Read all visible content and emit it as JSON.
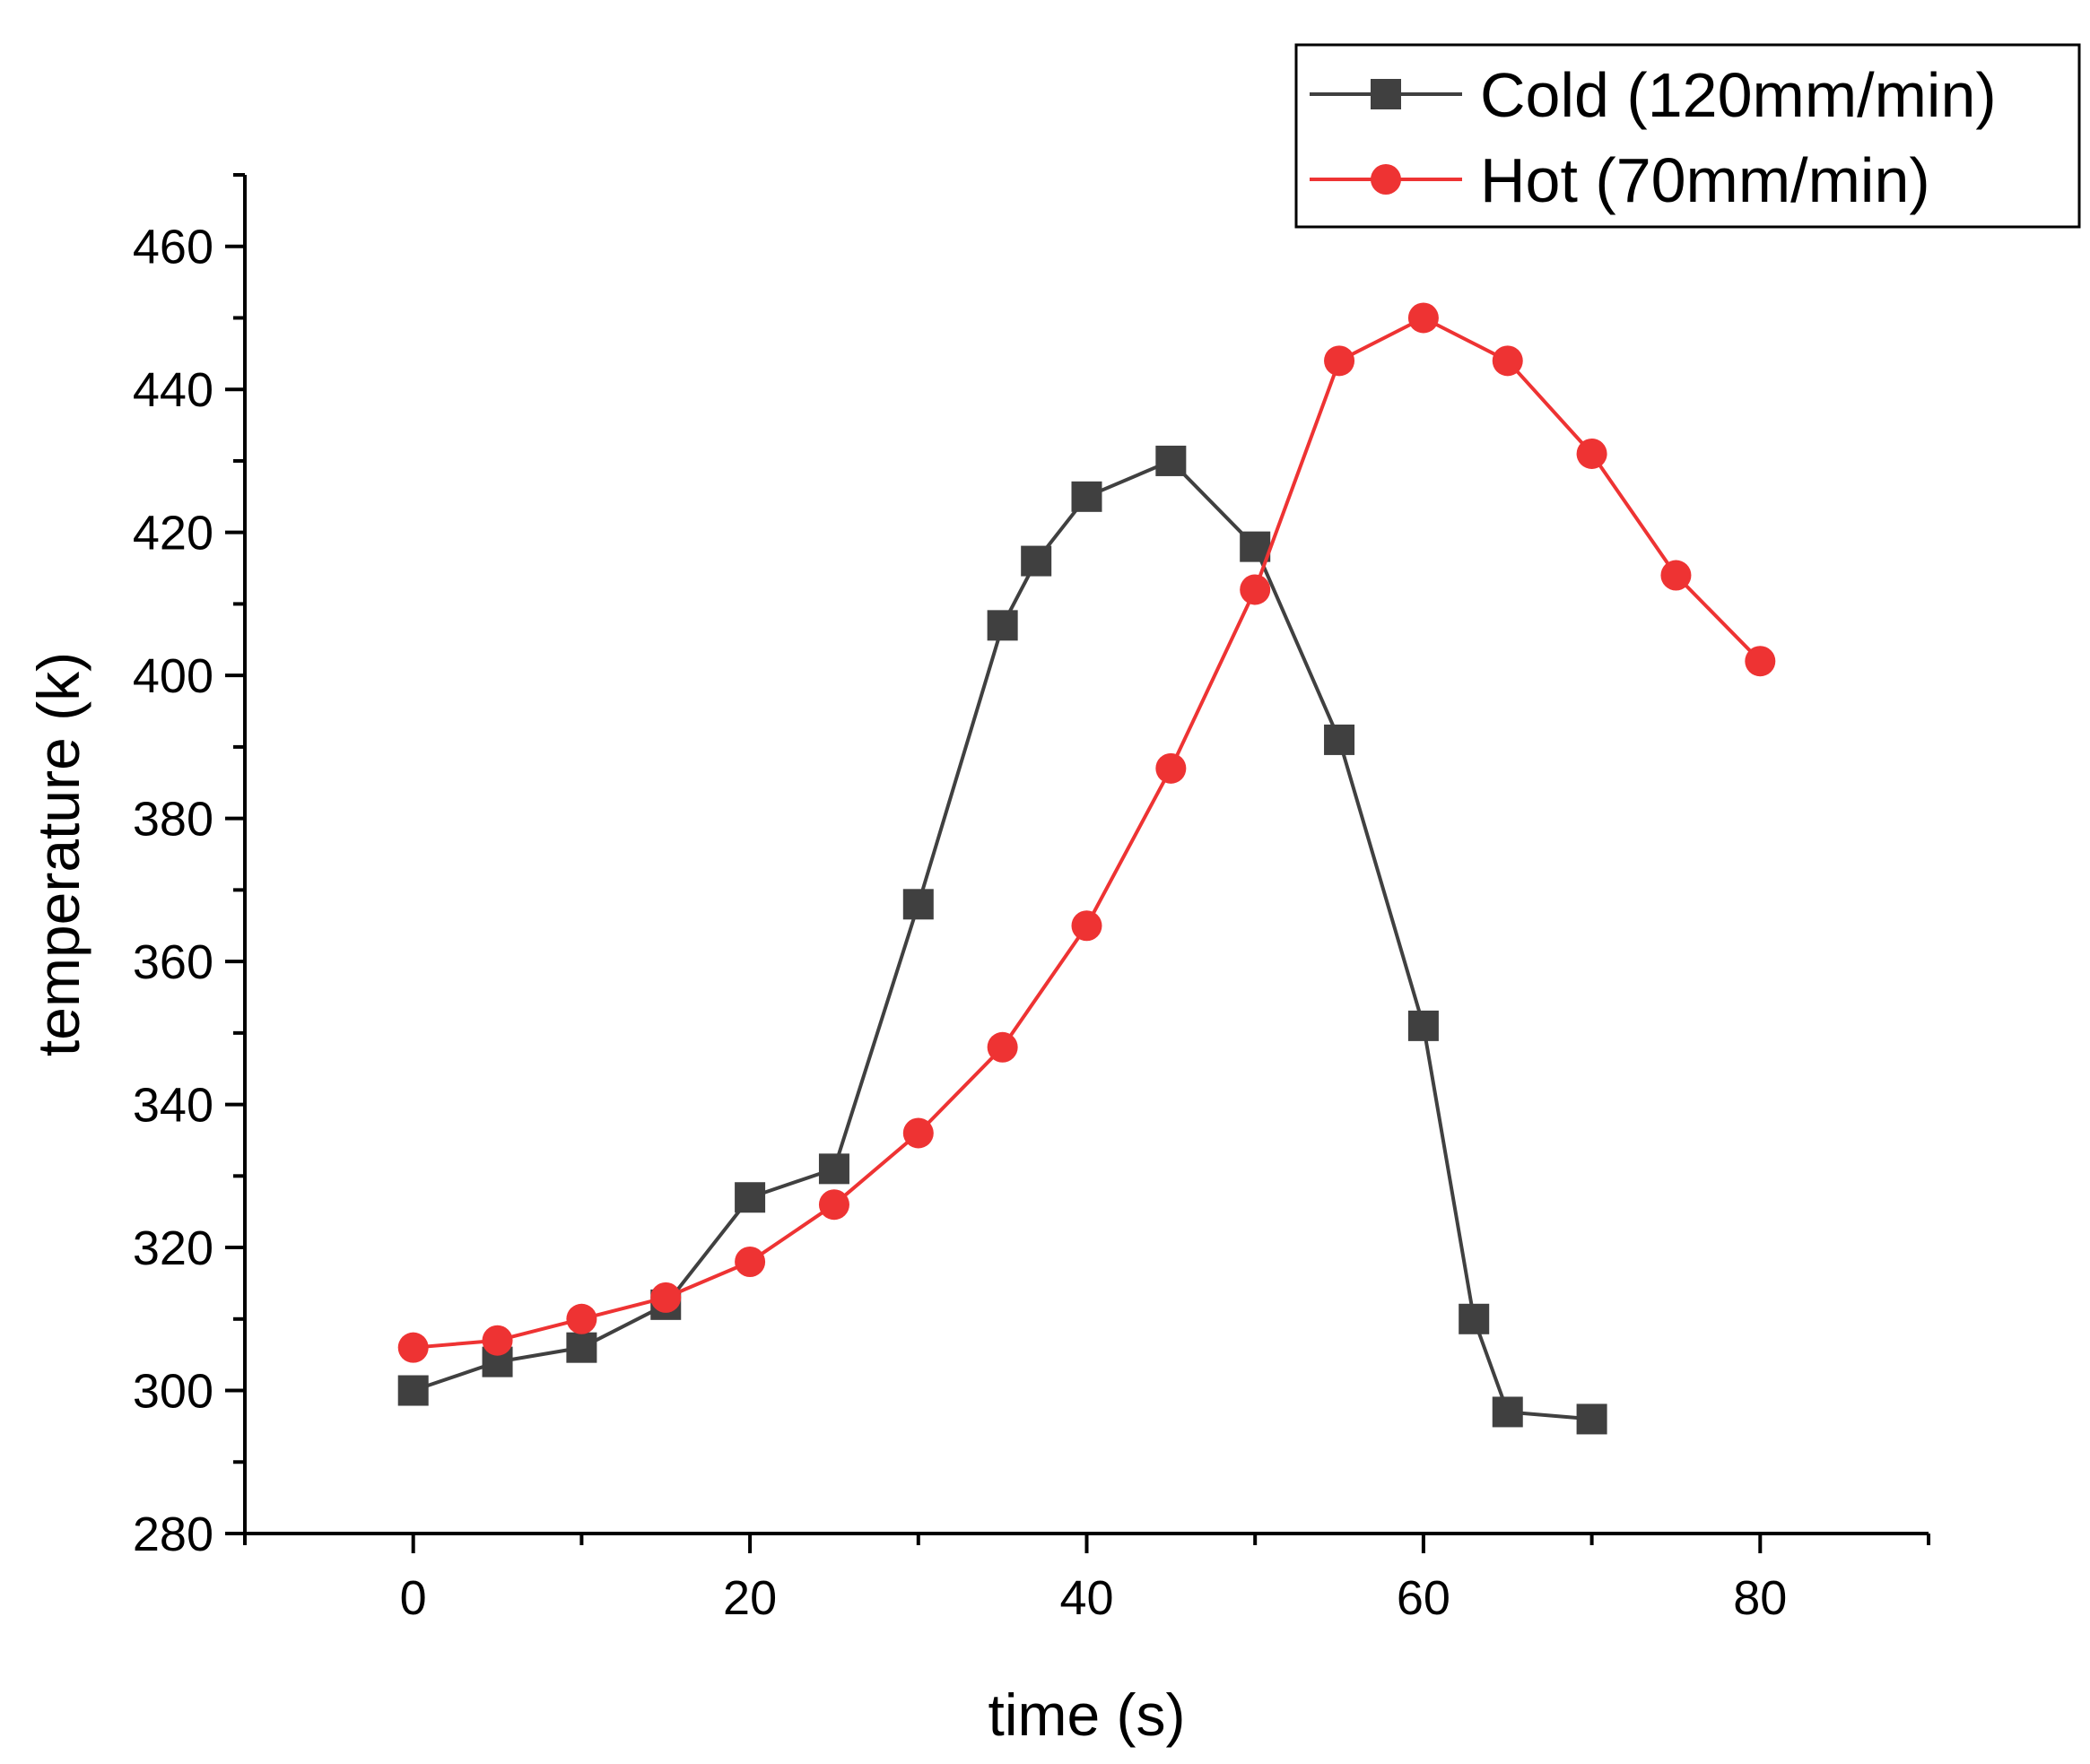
{
  "chart_data": {
    "type": "line",
    "title": "",
    "xlabel": "time (s)",
    "ylabel": "temperature (k)",
    "xlim": [
      -10,
      90
    ],
    "ylim": [
      280,
      470
    ],
    "xticks": [
      0,
      20,
      40,
      60,
      80
    ],
    "yticks": [
      280,
      300,
      320,
      340,
      360,
      380,
      400,
      420,
      440,
      460
    ],
    "grid": false,
    "legend_position": "top-right",
    "series": [
      {
        "name": "Cold (120mm/min)",
        "color": "#404040",
        "marker": "square",
        "x": [
          0,
          5,
          10,
          15,
          20,
          25,
          30,
          35,
          37,
          40,
          45,
          50,
          55,
          60,
          63,
          65,
          70
        ],
        "y": [
          300,
          304,
          306,
          312,
          327,
          331,
          368,
          407,
          416,
          425,
          430,
          418,
          391,
          351,
          310,
          297,
          296
        ]
      },
      {
        "name": "Hot (70mm/min)",
        "color": "#ee3333",
        "marker": "circle",
        "x": [
          0,
          5,
          10,
          15,
          20,
          25,
          30,
          35,
          40,
          45,
          50,
          55,
          60,
          65,
          70,
          75,
          80
        ],
        "y": [
          306,
          307,
          310,
          313,
          318,
          326,
          336,
          348,
          365,
          387,
          412,
          444,
          450,
          444,
          431,
          414,
          402
        ]
      }
    ]
  }
}
